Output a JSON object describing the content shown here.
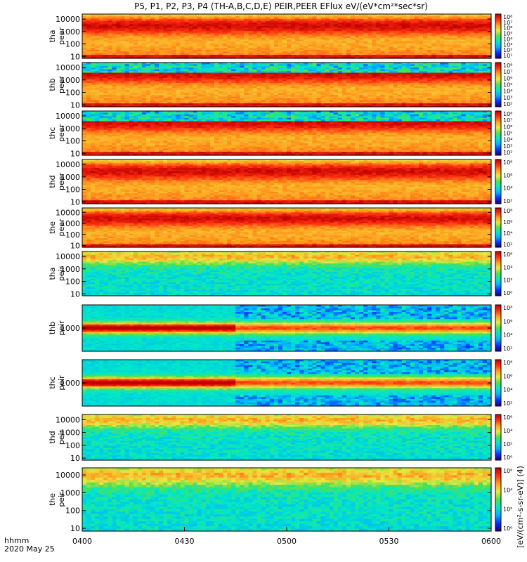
{
  "chart_data": {
    "type": "heatmap",
    "title": "P5, P1, P2, P3, P4 (TH-A,B,C,D,E) PEIR,PEER EFlux eV/(eV*cm²*sec*sr)",
    "x_axis": {
      "ticks": [
        "0400",
        "0430",
        "0500",
        "0530",
        "0600"
      ],
      "label_line1": "hhmm",
      "label_line2": "2020 May 25"
    },
    "colorbar_label": "[eV/(cm²-s-sr-eV)] (4)",
    "panels": [
      {
        "probe": "tha",
        "species": "peer",
        "yticks": [
          "10000",
          "1000",
          "100",
          "10"
        ],
        "cbar_ticks": [
          "10⁸",
          "10⁷",
          "10⁶",
          "10⁵",
          "10⁴",
          "10³",
          "10²",
          "10¹"
        ],
        "ylim": [
          7,
          25000
        ]
      },
      {
        "probe": "thb",
        "species": "peer",
        "yticks": [
          "10000",
          "1000",
          "100",
          "10"
        ],
        "cbar_ticks": [
          "10⁸",
          "10⁷",
          "10⁶",
          "10⁵",
          "10⁴",
          "10³",
          "10²"
        ],
        "ylim": [
          7,
          25000
        ]
      },
      {
        "probe": "thc",
        "species": "peer",
        "yticks": [
          "10000",
          "1000",
          "100",
          "10"
        ],
        "cbar_ticks": [
          "10⁸",
          "10⁷",
          "10⁶",
          "10⁵",
          "10⁴",
          "10³",
          "10²"
        ],
        "ylim": [
          7,
          25000
        ]
      },
      {
        "probe": "thd",
        "species": "peer",
        "yticks": [
          "10000",
          "1000",
          "100",
          "10"
        ],
        "cbar_ticks": [
          "10⁸",
          "10⁶",
          "10⁴",
          "10²"
        ],
        "ylim": [
          7,
          25000
        ]
      },
      {
        "probe": "the",
        "species": "peer",
        "yticks": [
          "10000",
          "1000",
          "100",
          "10"
        ],
        "cbar_ticks": [
          "10⁸",
          "10⁶",
          "10⁴",
          "10²"
        ],
        "ylim": [
          7,
          25000
        ]
      },
      {
        "probe": "tha",
        "species": "peir",
        "yticks": [
          "10000",
          "1000",
          "100",
          "10"
        ],
        "cbar_ticks": [
          "10⁶",
          "10⁴",
          "10²",
          "10⁰"
        ],
        "ylim": [
          7,
          25000
        ]
      },
      {
        "probe": "thb",
        "species": "peir",
        "yticks": [
          "1000"
        ],
        "cbar_ticks": [
          "10⁸",
          "10⁶",
          "10⁴",
          "10²"
        ],
        "ylim": [
          7,
          25000
        ]
      },
      {
        "probe": "thc",
        "species": "peir",
        "yticks": [
          "1000"
        ],
        "cbar_ticks": [
          "10⁸",
          "10⁶",
          "10⁴",
          "10²"
        ],
        "ylim": [
          7,
          25000
        ]
      },
      {
        "probe": "thd",
        "species": "peir",
        "yticks": [
          "10000",
          "1000",
          "100",
          "10"
        ],
        "cbar_ticks": [
          "10⁶",
          "10⁴",
          "10²",
          "10⁰"
        ],
        "ylim": [
          7,
          25000
        ]
      },
      {
        "probe": "the",
        "species": "peir",
        "yticks": [
          "10000",
          "1000",
          "100",
          "10"
        ],
        "cbar_ticks": [
          "10⁶",
          "10⁴",
          "10²",
          "10⁰"
        ],
        "ylim": [
          7,
          25000
        ]
      }
    ]
  },
  "colors": {
    "colormap": [
      "#1c0070",
      "#0030ff",
      "#00b0ff",
      "#00e8c8",
      "#50e050",
      "#e8e840",
      "#ffa020",
      "#ff3010",
      "#c00000"
    ],
    "panel_bg": "#ffffff",
    "axis": "#000000"
  }
}
